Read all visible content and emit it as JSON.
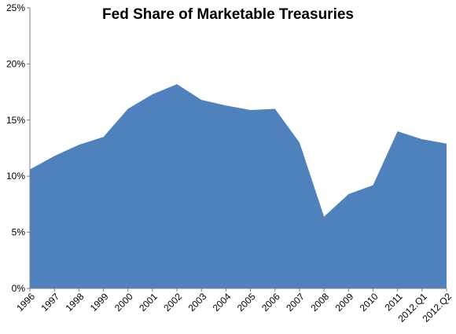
{
  "chart_data": {
    "type": "area",
    "title": "Fed Share of Marketable Treasuries",
    "xlabel": "",
    "ylabel": "",
    "categories": [
      "1996",
      "1997",
      "1998",
      "1999",
      "2000",
      "2001",
      "2002",
      "2003",
      "2004",
      "2005",
      "2006",
      "2007",
      "2008",
      "2009",
      "2010",
      "2011",
      "2012.Q1",
      "2012.Q2"
    ],
    "values": [
      10.6,
      11.8,
      12.8,
      13.5,
      16.0,
      17.3,
      18.2,
      16.8,
      16.3,
      15.9,
      16.0,
      13.0,
      6.4,
      8.4,
      9.2,
      14.0,
      13.3,
      12.9
    ],
    "ylim": [
      0,
      25
    ],
    "yticks": [
      0,
      5,
      10,
      15,
      20,
      25
    ],
    "ytick_format": "percent",
    "grid": false,
    "legend": "none",
    "colors": {
      "area_fill": "#4f81bd",
      "axis": "#7f7f7f"
    }
  }
}
